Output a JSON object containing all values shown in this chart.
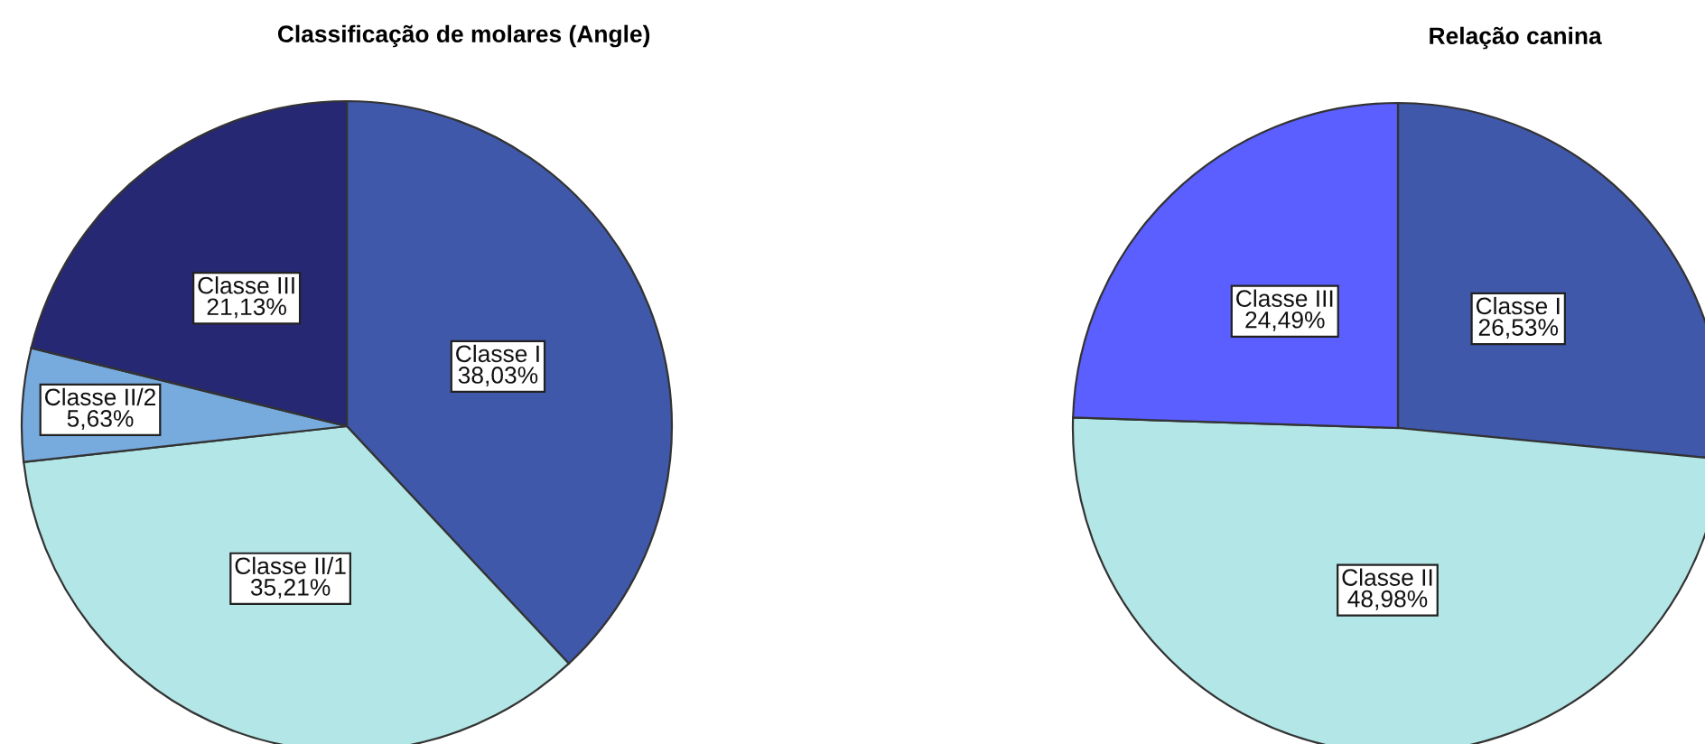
{
  "chart_data": [
    {
      "type": "pie",
      "title": "Classificação de molares (Angle)",
      "categories": [
        "Classe I",
        "Classe II/1",
        "Classe II/2",
        "Classe III"
      ],
      "values": [
        38.03,
        35.21,
        5.63,
        21.13
      ],
      "colors": [
        "#3f58aa",
        "#b3e6e6",
        "#77aadd",
        "#262873"
      ],
      "value_labels": [
        "38,03%",
        "35,21%",
        "5,63%",
        "21,13%"
      ]
    },
    {
      "type": "pie",
      "title": "Relação canina",
      "categories": [
        "Classe I",
        "Classe II",
        "Classe III"
      ],
      "values": [
        26.53,
        48.98,
        24.49
      ],
      "colors": [
        "#3f58aa",
        "#b3e6e6",
        "#5b5fff"
      ],
      "value_labels": [
        "26,53%",
        "48,98%",
        "24,49%"
      ]
    }
  ]
}
